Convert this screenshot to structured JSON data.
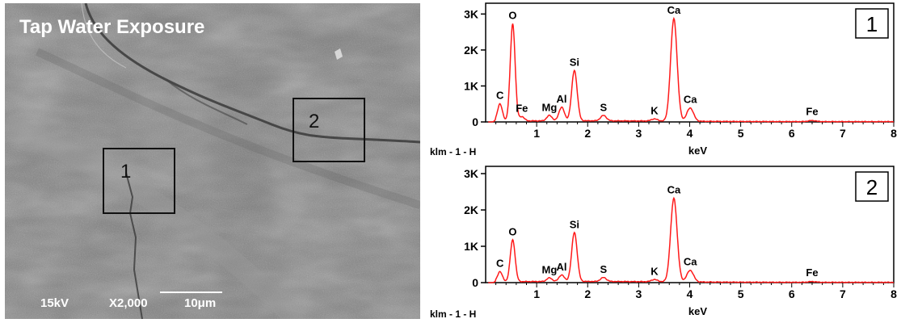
{
  "sem": {
    "title": "Tap Water Exposure",
    "voltage": "15kV",
    "magnification": "X2,000",
    "scale_bar": "10μm",
    "regions": [
      {
        "label": "1"
      },
      {
        "label": "2"
      }
    ]
  },
  "chart_data": [
    {
      "type": "line",
      "panel_label": "1",
      "xlabel": "keV",
      "footer_label": "klm - 1 - H",
      "xlim": [
        0.0,
        8.0
      ],
      "ylim": [
        0,
        3300
      ],
      "x_ticks": [
        "1",
        "2",
        "3",
        "4",
        "5",
        "6",
        "7",
        "8"
      ],
      "y_ticks": [
        "0",
        "1K",
        "2K",
        "3K"
      ],
      "peaks": [
        {
          "element": "C",
          "kev": 0.28,
          "counts": 480
        },
        {
          "element": "O",
          "kev": 0.53,
          "counts": 2700
        },
        {
          "element": "Fe",
          "kev": 0.71,
          "counts": 120
        },
        {
          "element": "Mg",
          "kev": 1.25,
          "counts": 150
        },
        {
          "element": "Al",
          "kev": 1.49,
          "counts": 380
        },
        {
          "element": "Si",
          "kev": 1.74,
          "counts": 1400
        },
        {
          "element": "S",
          "kev": 2.31,
          "counts": 150
        },
        {
          "element": "K",
          "kev": 3.31,
          "counts": 60
        },
        {
          "element": "Ca",
          "kev": 3.69,
          "counts": 2850
        },
        {
          "element": "Ca",
          "kev": 4.01,
          "counts": 370
        },
        {
          "element": "Fe",
          "kev": 6.4,
          "counts": 30
        }
      ]
    },
    {
      "type": "line",
      "panel_label": "2",
      "xlabel": "keV",
      "footer_label": "klm - 1 - H",
      "xlim": [
        0.0,
        8.0
      ],
      "ylim": [
        0,
        3200
      ],
      "x_ticks": [
        "1",
        "2",
        "3",
        "4",
        "5",
        "6",
        "7",
        "8"
      ],
      "y_ticks": [
        "0",
        "1K",
        "2K",
        "3K"
      ],
      "peaks": [
        {
          "element": "C",
          "kev": 0.28,
          "counts": 280
        },
        {
          "element": "O",
          "kev": 0.53,
          "counts": 1150
        },
        {
          "element": "Mg",
          "kev": 1.25,
          "counts": 100
        },
        {
          "element": "Al",
          "kev": 1.49,
          "counts": 180
        },
        {
          "element": "Si",
          "kev": 1.74,
          "counts": 1350
        },
        {
          "element": "S",
          "kev": 2.31,
          "counts": 110
        },
        {
          "element": "K",
          "kev": 3.31,
          "counts": 60
        },
        {
          "element": "Ca",
          "kev": 3.69,
          "counts": 2300
        },
        {
          "element": "Ca",
          "kev": 4.01,
          "counts": 320
        },
        {
          "element": "Fe",
          "kev": 6.4,
          "counts": 20
        }
      ]
    }
  ],
  "colors": {
    "spectrum_line": "#ff1a1a",
    "axis": "#000000",
    "sem_background": "#7d7d7d"
  }
}
